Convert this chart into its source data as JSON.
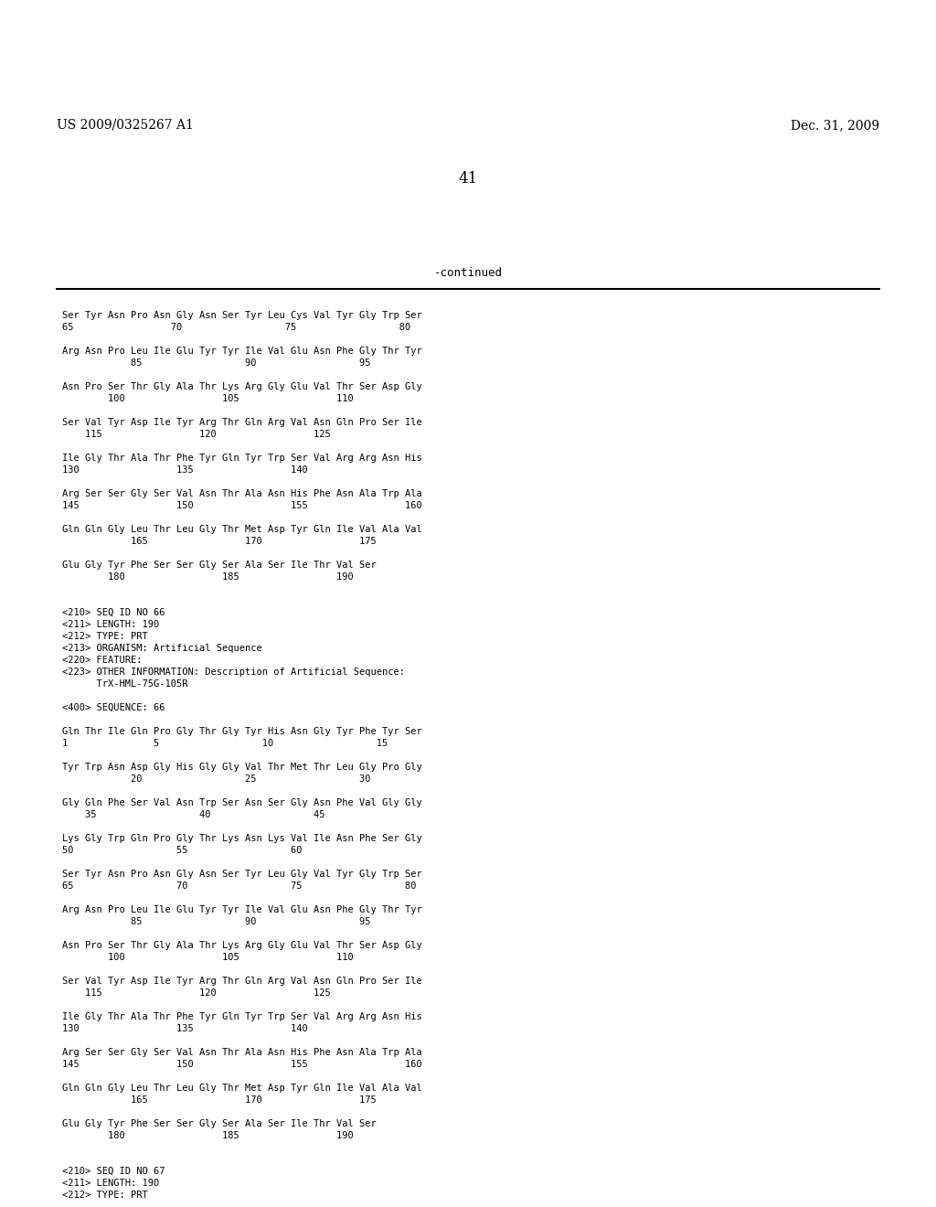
{
  "header_left": "US 2009/0325267 A1",
  "header_right": "Dec. 31, 2009",
  "page_number": "41",
  "continued_label": "-continued",
  "background_color": "#ffffff",
  "text_color": "#000000",
  "content": [
    "Ser Tyr Asn Pro Asn Gly Asn Ser Tyr Leu Cys Val Tyr Gly Trp Ser",
    "65                 70                  75                  80",
    "",
    "Arg Asn Pro Leu Ile Glu Tyr Tyr Ile Val Glu Asn Phe Gly Thr Tyr",
    "            85                  90                  95",
    "",
    "Asn Pro Ser Thr Gly Ala Thr Lys Arg Gly Glu Val Thr Ser Asp Gly",
    "        100                 105                 110",
    "",
    "Ser Val Tyr Asp Ile Tyr Arg Thr Gln Arg Val Asn Gln Pro Ser Ile",
    "    115                 120                 125",
    "",
    "Ile Gly Thr Ala Thr Phe Tyr Gln Tyr Trp Ser Val Arg Arg Asn His",
    "130                 135                 140",
    "",
    "Arg Ser Ser Gly Ser Val Asn Thr Ala Asn His Phe Asn Ala Trp Ala",
    "145                 150                 155                 160",
    "",
    "Gln Gln Gly Leu Thr Leu Gly Thr Met Asp Tyr Gln Ile Val Ala Val",
    "            165                 170                 175",
    "",
    "Glu Gly Tyr Phe Ser Ser Gly Ser Ala Ser Ile Thr Val Ser",
    "        180                 185                 190",
    "",
    "",
    "<210> SEQ ID NO 66",
    "<211> LENGTH: 190",
    "<212> TYPE: PRT",
    "<213> ORGANISM: Artificial Sequence",
    "<220> FEATURE:",
    "<223> OTHER INFORMATION: Description of Artificial Sequence:",
    "      TrX-HML-75G-105R",
    "",
    "<400> SEQUENCE: 66",
    "",
    "Gln Thr Ile Gln Pro Gly Thr Gly Tyr His Asn Gly Tyr Phe Tyr Ser",
    "1               5                  10                  15",
    "",
    "Tyr Trp Asn Asp Gly His Gly Gly Val Thr Met Thr Leu Gly Pro Gly",
    "            20                  25                  30",
    "",
    "Gly Gln Phe Ser Val Asn Trp Ser Asn Ser Gly Asn Phe Val Gly Gly",
    "    35                  40                  45",
    "",
    "Lys Gly Trp Gln Pro Gly Thr Lys Asn Lys Val Ile Asn Phe Ser Gly",
    "50                  55                  60",
    "",
    "Ser Tyr Asn Pro Asn Gly Asn Ser Tyr Leu Gly Val Tyr Gly Trp Ser",
    "65                  70                  75                  80",
    "",
    "Arg Asn Pro Leu Ile Glu Tyr Tyr Ile Val Glu Asn Phe Gly Thr Tyr",
    "            85                  90                  95",
    "",
    "Asn Pro Ser Thr Gly Ala Thr Lys Arg Gly Glu Val Thr Ser Asp Gly",
    "        100                 105                 110",
    "",
    "Ser Val Tyr Asp Ile Tyr Arg Thr Gln Arg Val Asn Gln Pro Ser Ile",
    "    115                 120                 125",
    "",
    "Ile Gly Thr Ala Thr Phe Tyr Gln Tyr Trp Ser Val Arg Arg Asn His",
    "130                 135                 140",
    "",
    "Arg Ser Ser Gly Ser Val Asn Thr Ala Asn His Phe Asn Ala Trp Ala",
    "145                 150                 155                 160",
    "",
    "Gln Gln Gly Leu Thr Leu Gly Thr Met Asp Tyr Gln Ile Val Ala Val",
    "            165                 170                 175",
    "",
    "Glu Gly Tyr Phe Ser Ser Gly Ser Ala Ser Ile Thr Val Ser",
    "        180                 185                 190",
    "",
    "",
    "<210> SEQ ID NO 67",
    "<211> LENGTH: 190",
    "<212> TYPE: PRT"
  ]
}
